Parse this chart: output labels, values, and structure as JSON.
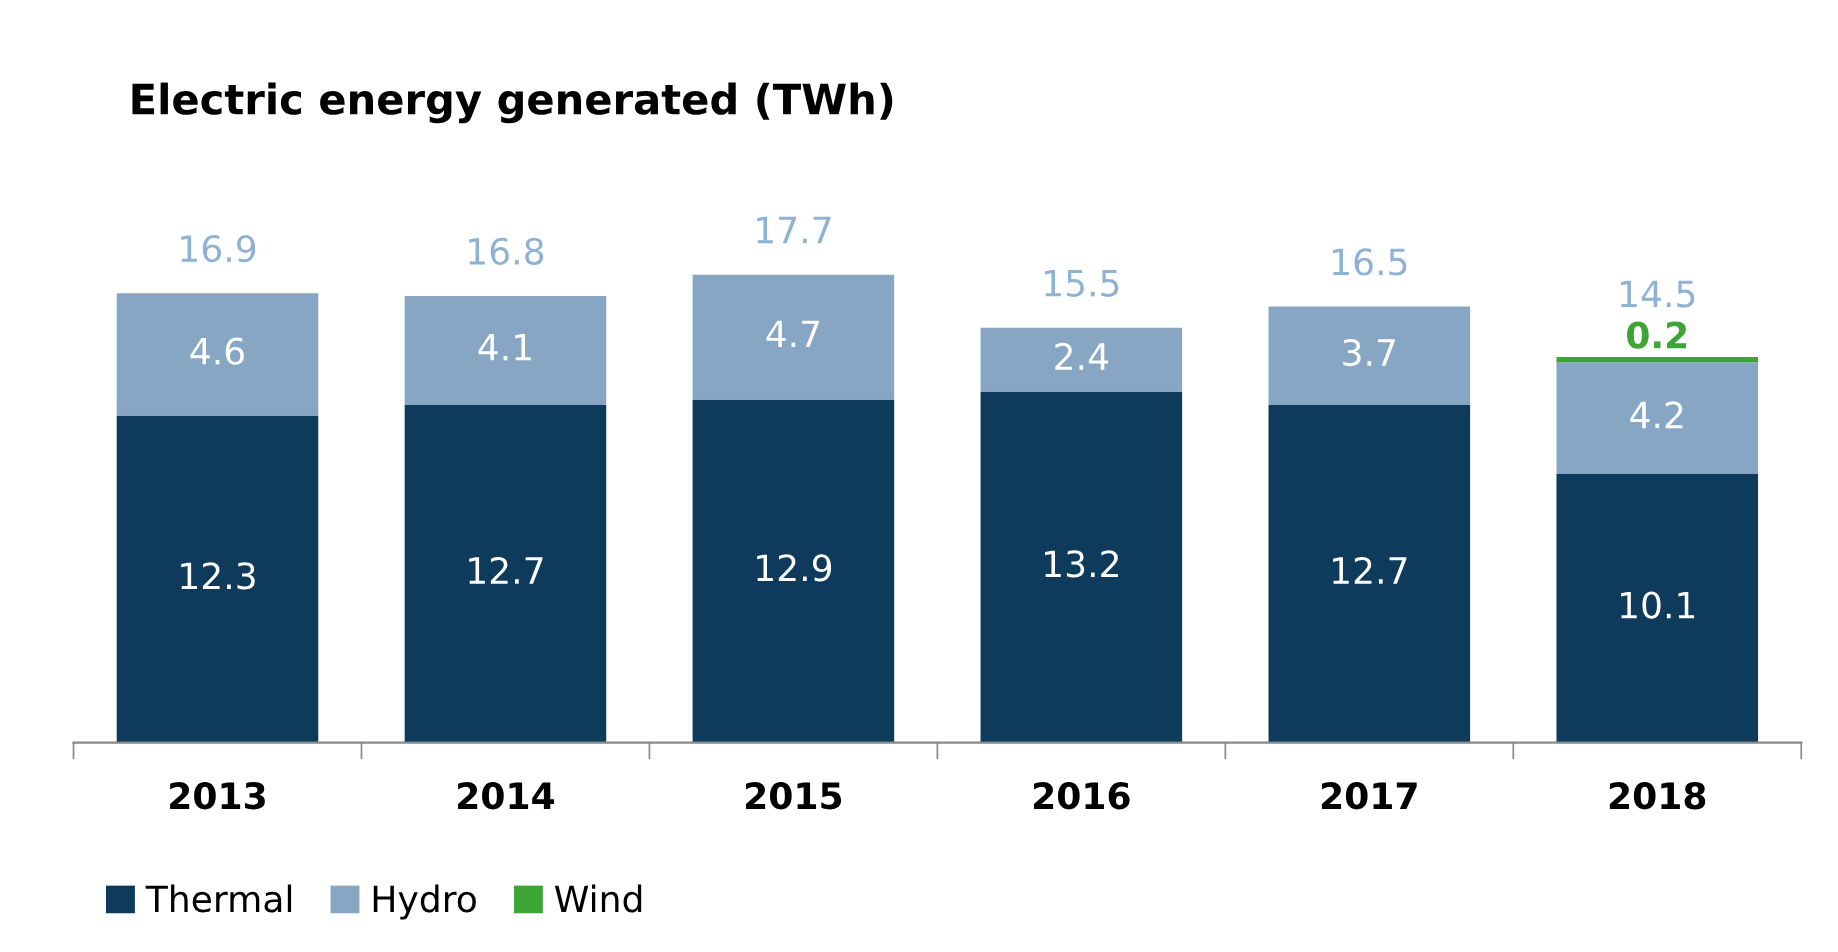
{
  "chart_data": {
    "type": "bar",
    "title": "Electric energy generated (TWh)",
    "categories": [
      "2013",
      "2014",
      "2015",
      "2016",
      "2017",
      "2018"
    ],
    "stacked": true,
    "data_labels": true,
    "legend": "bottom left",
    "series": [
      {
        "name": "Thermal",
        "color": "#0e3a5c",
        "values": [
          12.3,
          12.7,
          12.9,
          13.2,
          12.7,
          10.1
        ]
      },
      {
        "name": "Hydro",
        "color": "#86a6c4",
        "values": [
          4.6,
          4.1,
          4.7,
          2.4,
          3.7,
          4.2
        ]
      },
      {
        "name": "Wind",
        "color": "#3ca535",
        "values": [
          null,
          null,
          null,
          null,
          null,
          0.2
        ]
      }
    ],
    "totals": [
      "16.9",
      "16.8",
      "17.7",
      "15.5",
      "16.5",
      "14.5"
    ]
  }
}
